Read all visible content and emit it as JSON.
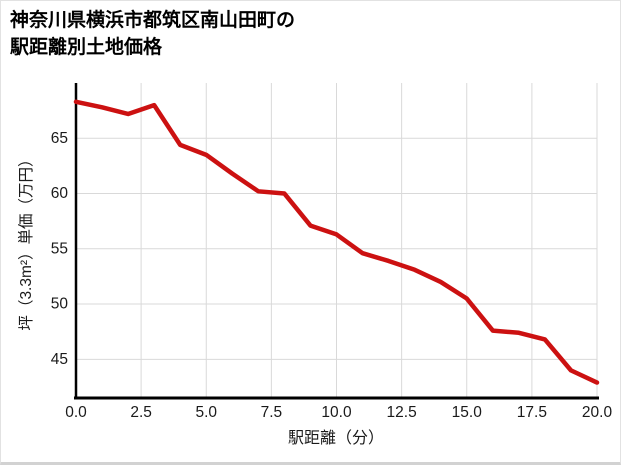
{
  "card": {
    "title_line1": "神奈川県横浜市都筑区南山田町の",
    "title_line2": "駅距離別土地価格"
  },
  "chart_data": {
    "type": "line",
    "title": "神奈川県横浜市都筑区南山田町の駅距離別土地価格",
    "xlabel": "駅距離（分）",
    "ylabel": "坪（3.3m²）単価（万円）",
    "x": [
      0,
      1,
      2,
      3,
      4,
      5,
      6,
      7,
      8,
      9,
      10,
      11,
      12,
      13,
      14,
      15,
      16,
      17,
      18,
      19,
      20
    ],
    "values": [
      68.3,
      67.8,
      67.2,
      68.0,
      64.4,
      63.5,
      61.8,
      60.2,
      60.0,
      57.1,
      56.3,
      54.6,
      53.9,
      53.1,
      52.0,
      50.5,
      47.6,
      47.4,
      46.8,
      44.0,
      42.9
    ],
    "xlim": [
      0,
      20
    ],
    "ylim": [
      41.5,
      70.0
    ],
    "xticks": [
      0,
      2.5,
      5,
      7.5,
      10,
      12.5,
      15,
      17.5,
      20
    ],
    "xtick_labels": [
      "0.0",
      "2.5",
      "5.0",
      "7.5",
      "10.0",
      "12.5",
      "15.0",
      "17.5",
      "20.0"
    ],
    "yticks": [
      45,
      50,
      55,
      60,
      65
    ],
    "ytick_labels": [
      "45",
      "50",
      "55",
      "60",
      "65"
    ],
    "grid": true,
    "legend": "none",
    "line_color": "#cc1111",
    "grid_color": "#d9d9d9",
    "axis_color": "#000000",
    "text_color": "#1a1a1a"
  }
}
